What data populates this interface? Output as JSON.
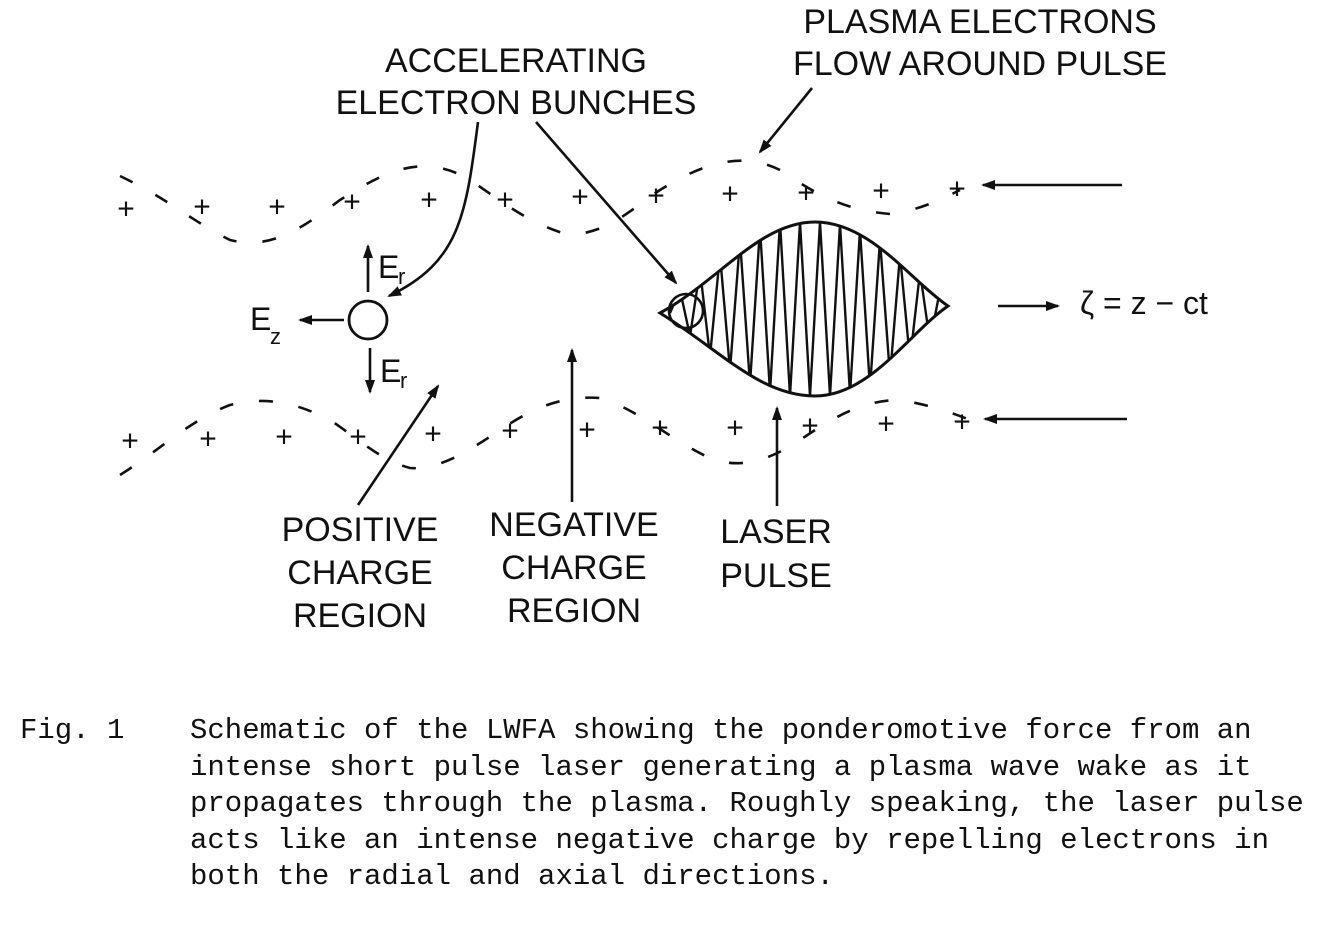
{
  "labels": {
    "accelerating": [
      "ACCELERATING",
      "ELECTRON BUNCHES"
    ],
    "plasma_flow": [
      "PLASMA ELECTRONS",
      "FLOW AROUND PULSE"
    ],
    "positive_region": [
      "POSITIVE",
      "CHARGE",
      "REGION"
    ],
    "negative_region": [
      "NEGATIVE",
      "CHARGE",
      "REGION"
    ],
    "laser_pulse": [
      "LASER",
      "PULSE"
    ],
    "e_r": "E",
    "e_r_sub": "r",
    "e_z": "E",
    "e_z_sub": "z",
    "zeta_expr": "ζ = z − ct",
    "plus": "+",
    "minus": "−"
  },
  "caption": {
    "number": "Fig. 1",
    "text": "Schematic of the LWFA showing the ponderomotive force from an intense short pulse laser generating a plasma wave wake as it propagates through the plasma.  Roughly speaking, the laser pulse acts like an intense negative charge by repelling electrons in both the radial and axial directions."
  }
}
